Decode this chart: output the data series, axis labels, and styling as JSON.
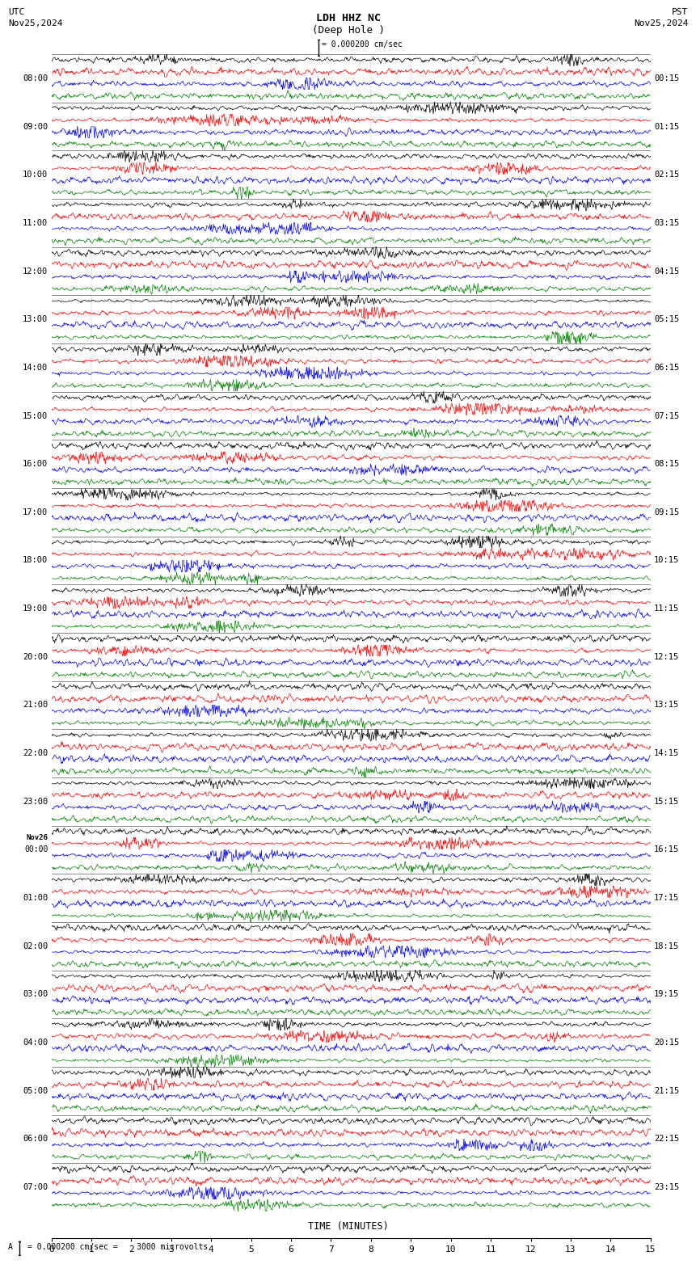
{
  "title_line1": "LDH HHZ NC",
  "title_line2": "(Deep Hole )",
  "scale_text": "= 0.000200 cm/sec",
  "bottom_scale_text": "= 0.000200 cm/sec =    3000 microvolts",
  "utc_label": "UTC",
  "utc_date": "Nov25,2024",
  "pst_label": "PST",
  "pst_date": "Nov25,2024",
  "xlabel": "TIME (MINUTES)",
  "trace_colors": [
    "black",
    "red",
    "blue",
    "green"
  ],
  "bg_color": "white",
  "num_rows": 24,
  "traces_per_row": 4,
  "utc_times": [
    "08:00",
    "09:00",
    "10:00",
    "11:00",
    "12:00",
    "13:00",
    "14:00",
    "15:00",
    "16:00",
    "17:00",
    "18:00",
    "19:00",
    "20:00",
    "21:00",
    "22:00",
    "23:00",
    "Nov26\n00:00",
    "01:00",
    "02:00",
    "03:00",
    "04:00",
    "05:00",
    "06:00",
    "07:00"
  ],
  "pst_times": [
    "00:15",
    "01:15",
    "02:15",
    "03:15",
    "04:15",
    "05:15",
    "06:15",
    "07:15",
    "08:15",
    "09:15",
    "10:15",
    "11:15",
    "12:15",
    "13:15",
    "14:15",
    "15:15",
    "16:15",
    "17:15",
    "18:15",
    "19:15",
    "20:15",
    "21:15",
    "22:15",
    "23:15"
  ],
  "nov26_row": 16,
  "figwidth": 8.5,
  "figheight": 15.84,
  "dpi": 100
}
